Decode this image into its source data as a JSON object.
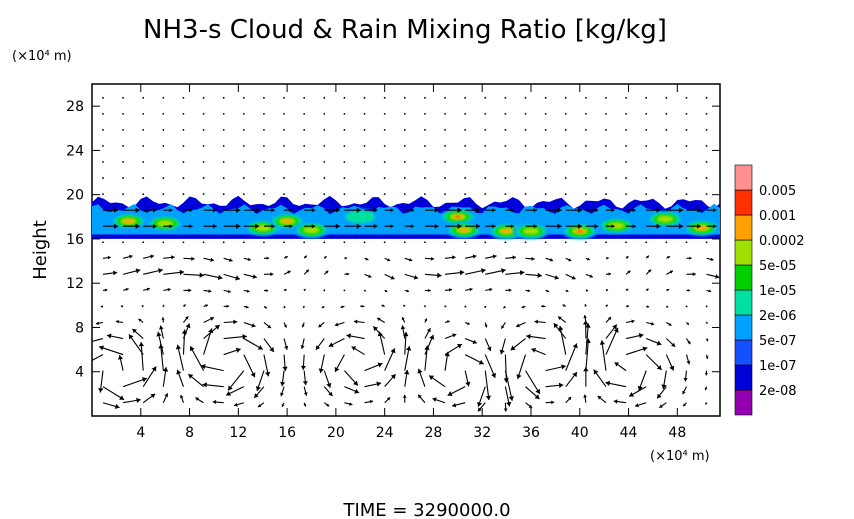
{
  "chart_data": {
    "type": "heatmap",
    "title": "NH3-s Cloud & Rain Mixing Ratio [kg/kg]",
    "ylabel": "Height",
    "y_unit": "(×10⁴ m)",
    "x_unit": "(×10⁴ m)",
    "footer": "TIME = 3290000.0",
    "xlim": [
      0,
      51.5
    ],
    "ylim": [
      0,
      30
    ],
    "x_ticks": [
      "4",
      "8",
      "12",
      "16",
      "20",
      "24",
      "28",
      "32",
      "36",
      "40",
      "44",
      "48"
    ],
    "y_ticks": [
      "4",
      "8",
      "12",
      "16",
      "20",
      "24",
      "28"
    ],
    "grid": false,
    "legend_position": "right",
    "colorbar": {
      "labels": [
        "0.005",
        "0.001",
        "0.0002",
        "5e-05",
        "1e-05",
        "2e-06",
        "5e-07",
        "1e-07",
        "2e-08"
      ],
      "colors": [
        "#9400b0",
        "#0000d8",
        "#1450ff",
        "#00a0ff",
        "#00e0a0",
        "#00d000",
        "#a0e000",
        "#ffa000",
        "#ff3000",
        "#ff9090"
      ]
    },
    "cloud_layer": {
      "base_height": 16,
      "top_height": 19.5,
      "cells": [
        {
          "x": 3,
          "y": 17.6,
          "level": 7
        },
        {
          "x": 6,
          "y": 17.4,
          "level": 6
        },
        {
          "x": 14,
          "y": 17.0,
          "level": 6
        },
        {
          "x": 16,
          "y": 17.6,
          "level": 7
        },
        {
          "x": 18,
          "y": 16.8,
          "level": 6
        },
        {
          "x": 22,
          "y": 18.0,
          "level": 4
        },
        {
          "x": 30,
          "y": 18.0,
          "level": 8
        },
        {
          "x": 30.5,
          "y": 16.8,
          "level": 7
        },
        {
          "x": 34,
          "y": 16.7,
          "level": 7
        },
        {
          "x": 36,
          "y": 16.7,
          "level": 6
        },
        {
          "x": 40,
          "y": 16.7,
          "level": 8
        },
        {
          "x": 43,
          "y": 17.2,
          "level": 6
        },
        {
          "x": 47,
          "y": 17.8,
          "level": 6
        },
        {
          "x": 50,
          "y": 17.0,
          "level": 7
        }
      ]
    },
    "wind_field": {
      "vortices": [
        {
          "x": 2,
          "y": 4,
          "strength": 1.0
        },
        {
          "x": 11,
          "y": 5,
          "strength": -1.0
        },
        {
          "x": 22,
          "y": 5,
          "strength": 0.8
        },
        {
          "x": 30,
          "y": 4,
          "strength": -0.8
        },
        {
          "x": 37,
          "y": 5,
          "strength": 0.9
        },
        {
          "x": 44,
          "y": 4.5,
          "strength": -0.9
        }
      ],
      "jet": {
        "y": 13,
        "speed": 1.0
      }
    }
  }
}
